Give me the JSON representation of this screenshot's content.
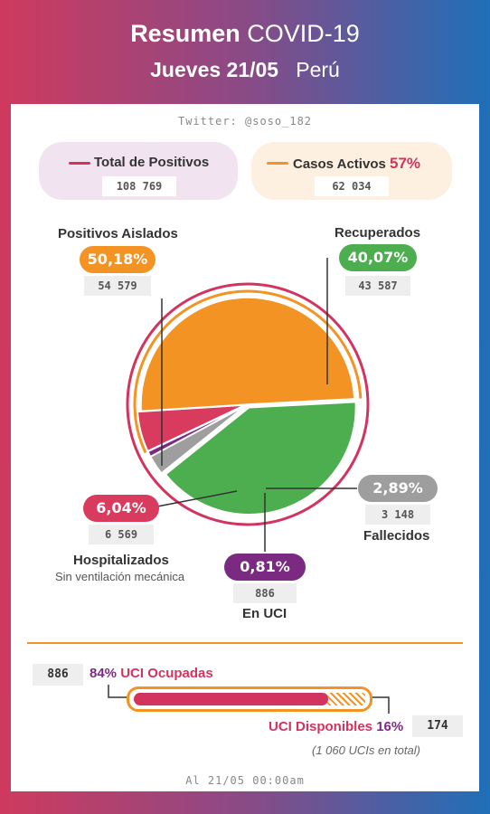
{
  "header": {
    "title_bold": "Resumen",
    "title_rest": "COVID-19",
    "date_bold": "Jueves 21/05",
    "country": "Perú"
  },
  "twitter": "Twitter: @soso_182",
  "summary": {
    "total_label": "Total de Positivos",
    "total_value": "108 769",
    "active_label": "Casos Activos",
    "active_pct": "57%",
    "active_value": "62 034"
  },
  "colors": {
    "aislados": "#f39323",
    "recuperados": "#4cae4f",
    "fallecidos": "#9e9e9e",
    "uci": "#7b2a82",
    "hospitalizados": "#d83b5e",
    "ring": "#d3335f"
  },
  "categories": {
    "aislados": {
      "label": "Positivos Aislados",
      "pct": "50,18%",
      "value": "54 579"
    },
    "recuperados": {
      "label": "Recuperados",
      "pct": "40,07%",
      "value": "43 587"
    },
    "fallecidos": {
      "label": "Fallecidos",
      "pct": "2,89%",
      "value": "3 148"
    },
    "uci": {
      "label": "En UCI",
      "pct": "0,81%",
      "value": "886"
    },
    "hospitalizados": {
      "label": "Hospitalizados",
      "sub": "Sin ventilación mecánica",
      "pct": "6,04%",
      "value": "6 569"
    }
  },
  "uci_bar": {
    "occupied_value": "886",
    "occupied_pct": "84%",
    "occupied_label": "UCI Ocupadas",
    "available_label": "UCI Disponibles",
    "available_pct": "16%",
    "available_value": "174",
    "total_note": "(1 060 UCIs en total)",
    "occupied_fraction": 0.84
  },
  "footer": "Al 21/05 00:00am",
  "chart_data": {
    "type": "pie",
    "slices": [
      {
        "name": "Positivos Aislados",
        "value": 54579,
        "pct": 50.18
      },
      {
        "name": "Recuperados",
        "value": 43587,
        "pct": 40.07
      },
      {
        "name": "Fallecidos",
        "value": 3148,
        "pct": 2.89
      },
      {
        "name": "En UCI",
        "value": 886,
        "pct": 0.81
      },
      {
        "name": "Hospitalizados",
        "value": 6569,
        "pct": 6.04
      }
    ],
    "total": 108769
  }
}
